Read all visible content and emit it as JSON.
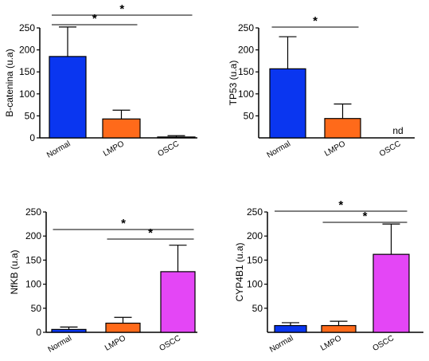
{
  "colors": {
    "Normal": "#0a36f0",
    "LMPO": "#ff6a1a",
    "OSCC": "#e446f6",
    "axis": "#000000"
  },
  "chart_data": [
    {
      "type": "bar",
      "id": "panel-b-catenina",
      "ylabel": "B-catenina  (u.a)",
      "categories": [
        "Normal",
        "LMPO",
        "OSCC"
      ],
      "values": [
        185,
        43,
        2
      ],
      "errors": [
        67,
        20,
        3
      ],
      "ylim": [
        0,
        250
      ],
      "yticks": [
        0,
        50,
        100,
        150,
        200,
        250
      ],
      "bar_labels": [
        "",
        "",
        ""
      ],
      "significance": [
        {
          "from": "Normal",
          "to": "OSCC",
          "mark": "*"
        },
        {
          "from": "Normal",
          "to": "LMPO",
          "mark": "*"
        }
      ]
    },
    {
      "type": "bar",
      "id": "panel-tp53",
      "ylabel": "TP53  (u.a)",
      "categories": [
        "Normal",
        "LMPO",
        "OSCC"
      ],
      "values": [
        157,
        44,
        null
      ],
      "errors": [
        73,
        33,
        null
      ],
      "ylim": [
        0,
        250
      ],
      "yticks": [
        50,
        100,
        150,
        200,
        250
      ],
      "bar_labels": [
        "",
        "",
        "nd"
      ],
      "significance": [
        {
          "from": "Normal",
          "to": "LMPO",
          "mark": "*"
        }
      ]
    },
    {
      "type": "bar",
      "id": "panel-nfkb",
      "ylabel": "NfKB  (u.a)",
      "categories": [
        "Normal",
        "LMPO",
        "OSCC"
      ],
      "values": [
        6,
        19,
        126
      ],
      "errors": [
        5,
        12,
        55
      ],
      "ylim": [
        0,
        250
      ],
      "yticks": [
        0,
        50,
        100,
        150,
        200,
        250
      ],
      "bar_labels": [
        "",
        "",
        ""
      ],
      "significance": [
        {
          "from": "Normal",
          "to": "OSCC",
          "mark": "*"
        },
        {
          "from": "LMPO",
          "to": "OSCC",
          "mark": "*"
        }
      ]
    },
    {
      "type": "bar",
      "id": "panel-cyp4b1",
      "ylabel": "CYP4B1  (u.a)",
      "categories": [
        "Normal",
        "LMPO",
        "OSCC"
      ],
      "values": [
        14,
        14,
        162
      ],
      "errors": [
        6,
        9,
        63
      ],
      "ylim": [
        0,
        250
      ],
      "yticks": [
        50,
        100,
        150,
        200,
        250
      ],
      "bar_labels": [
        "",
        "",
        ""
      ],
      "significance": [
        {
          "from": "Normal",
          "to": "OSCC",
          "mark": "*"
        },
        {
          "from": "LMPO",
          "to": "OSCC",
          "mark": "*"
        }
      ]
    }
  ]
}
